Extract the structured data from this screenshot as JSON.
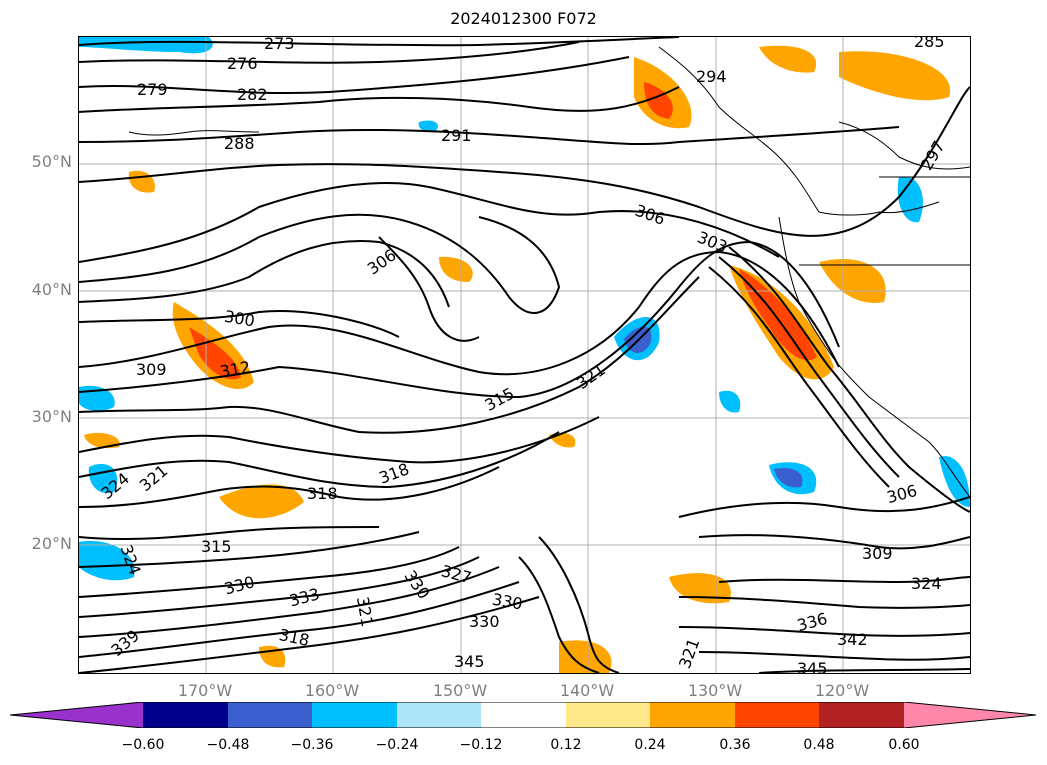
{
  "title": "2024012300 F072",
  "lat_labels": [
    "50°N",
    "40°N",
    "30°N",
    "20°N"
  ],
  "lon_labels": [
    "170°W",
    "160°W",
    "150°W",
    "140°W",
    "130°W",
    "120°W"
  ],
  "colorbar": {
    "ticks": [
      "−0.60",
      "−0.48",
      "−0.36",
      "−0.24",
      "−0.12",
      "0.12",
      "0.24",
      "0.36",
      "0.48",
      "0.60"
    ],
    "colors": [
      "#9932cc",
      "#00008b",
      "#3a5fcd",
      "#00bfff",
      "#aee4fa",
      "#ffffff",
      "#ffe98a",
      "#ffa500",
      "#ff4500",
      "#b22222",
      "#ff88aa"
    ]
  },
  "contour_labels": [
    {
      "text": "273"
    },
    {
      "text": "276"
    },
    {
      "text": "279"
    },
    {
      "text": "282"
    },
    {
      "text": "285"
    },
    {
      "text": "288"
    },
    {
      "text": "291"
    },
    {
      "text": "294"
    },
    {
      "text": "297"
    },
    {
      "text": "300"
    },
    {
      "text": "303"
    },
    {
      "text": "306"
    },
    {
      "text": "306"
    },
    {
      "text": "306"
    },
    {
      "text": "309"
    },
    {
      "text": "309"
    },
    {
      "text": "312"
    },
    {
      "text": "315"
    },
    {
      "text": "315"
    },
    {
      "text": "318"
    },
    {
      "text": "318"
    },
    {
      "text": "318"
    },
    {
      "text": "321"
    },
    {
      "text": "321"
    },
    {
      "text": "321"
    },
    {
      "text": "321"
    },
    {
      "text": "324"
    },
    {
      "text": "324"
    },
    {
      "text": "324"
    },
    {
      "text": "327"
    },
    {
      "text": "330"
    },
    {
      "text": "330"
    },
    {
      "text": "330"
    },
    {
      "text": "330"
    },
    {
      "text": "333"
    },
    {
      "text": "336"
    },
    {
      "text": "339"
    },
    {
      "text": "342"
    },
    {
      "text": "345"
    },
    {
      "text": "345"
    }
  ]
}
